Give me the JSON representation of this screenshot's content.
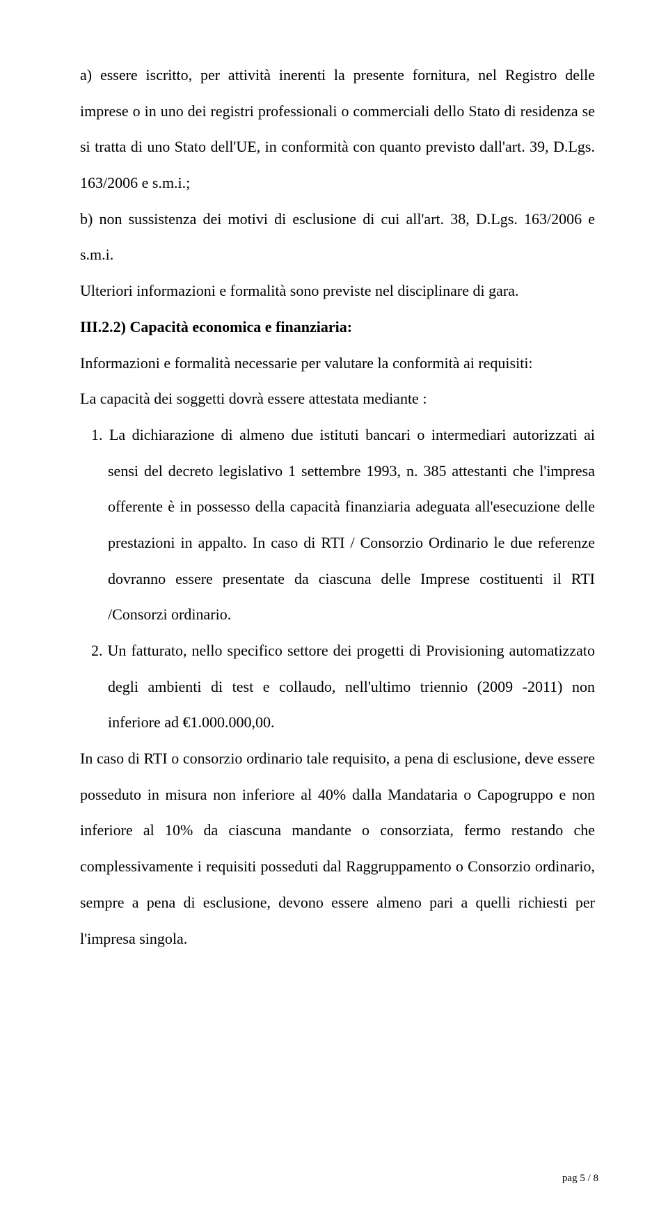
{
  "body": {
    "p1": "a) essere iscritto, per attività inerenti la presente fornitura, nel Registro delle imprese o in uno dei registri professionali o commerciali dello Stato di residenza se si tratta di uno Stato dell'UE, in conformità con quanto previsto dall'art. 39, D.Lgs. 163/2006 e s.m.i.;",
    "p2": "b) non sussistenza dei motivi di esclusione di cui all'art. 38, D.Lgs. 163/2006 e s.m.i.",
    "p3": "Ulteriori informazioni e formalità sono previste nel disciplinare di gara.",
    "p4": "III.2.2) Capacità economica e finanziaria:",
    "p5": "Informazioni e formalità necessarie per valutare la conformità ai requisiti:",
    "p6": "La capacità dei soggetti dovrà essere attestata mediante :",
    "li1": "1. La dichiarazione di almeno due istituti bancari o intermediari autorizzati ai sensi del decreto legislativo 1 settembre 1993, n. 385 attestanti che l'impresa offerente è in possesso della capacità finanziaria adeguata all'esecuzione delle prestazioni in appalto. In caso di RTI / Consorzio Ordinario le due referenze dovranno essere presentate da ciascuna delle Imprese costituenti il RTI /Consorzi ordinario.",
    "li2": "2. Un fatturato, nello specifico settore dei progetti di Provisioning automatizzato degli ambienti di test e collaudo, nell'ultimo triennio (2009 -2011) non inferiore ad €1.000.000,00.",
    "p7": "In caso di RTI o consorzio ordinario tale requisito, a pena di esclusione, deve essere posseduto in misura non inferiore al 40% dalla Mandataria o Capogruppo e non inferiore al 10% da ciascuna mandante o consorziata, fermo restando che complessivamente i requisiti posseduti dal Raggruppamento o Consorzio ordinario, sempre a pena di esclusione, devono essere almeno pari a quelli richiesti per l'impresa singola."
  },
  "footer": {
    "text": "pag 5 / 8"
  }
}
